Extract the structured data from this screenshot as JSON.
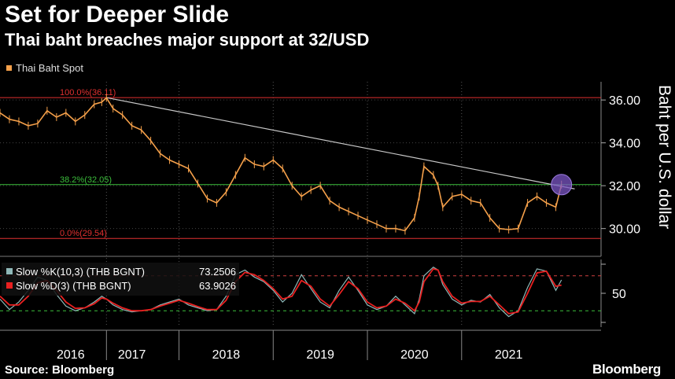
{
  "header": {
    "title": "Set for Deeper Slide",
    "subtitle": "Thai baht breaches major support at 32/USD"
  },
  "footer": {
    "source": "Source: Bloomberg",
    "brand": "Bloomberg"
  },
  "colors": {
    "spot": "#f5a04a",
    "resistance_line": "#c8c8c8",
    "fib_100": "#e03030",
    "fib_382": "#3cbf3c",
    "fib_0": "#e03030",
    "slow_k": "#8fb8b8",
    "slow_d": "#e82020",
    "highlight": "#7b55c4"
  },
  "chart_data": {
    "type": "line",
    "price_panel": {
      "legend": "Thai Baht Spot",
      "ylabel": "Baht per U.S. dollar",
      "ylim": [
        28.85,
        36.85
      ],
      "yticks": [
        "36.00",
        "34.00",
        "32.00",
        "30.00"
      ],
      "ytick_values": [
        36,
        34,
        32,
        30
      ],
      "levels": [
        {
          "label": "100.0%(36.11)",
          "value": 36.11
        },
        {
          "label": "38.2%(32.05)",
          "value": 32.05
        },
        {
          "label": "0.0%(29.54)",
          "value": 29.54
        }
      ],
      "trendline": {
        "from": {
          "x": 2016.73,
          "y": 36.11
        },
        "to": {
          "x": 2021.7,
          "y": 31.85
        }
      },
      "highlight_point": {
        "x": 2021.56,
        "y": 32.05
      },
      "x": [
        2015.6,
        2015.7,
        2015.8,
        2015.9,
        2016.0,
        2016.1,
        2016.2,
        2016.3,
        2016.4,
        2016.5,
        2016.6,
        2016.68,
        2016.73,
        2016.8,
        2016.9,
        2017.0,
        2017.1,
        2017.2,
        2017.3,
        2017.4,
        2017.5,
        2017.6,
        2017.7,
        2017.8,
        2017.9,
        2018.0,
        2018.1,
        2018.2,
        2018.3,
        2018.4,
        2018.5,
        2018.6,
        2018.7,
        2018.8,
        2018.9,
        2019.0,
        2019.1,
        2019.2,
        2019.3,
        2019.4,
        2019.5,
        2019.6,
        2019.7,
        2019.8,
        2019.9,
        2020.0,
        2020.05,
        2020.1,
        2020.2,
        2020.25,
        2020.3,
        2020.4,
        2020.5,
        2020.6,
        2020.7,
        2020.8,
        2020.9,
        2021.0,
        2021.1,
        2021.2,
        2021.3,
        2021.4,
        2021.5,
        2021.56
      ],
      "values": [
        35.4,
        35.1,
        35.0,
        34.8,
        34.9,
        35.5,
        35.2,
        35.4,
        35.0,
        35.3,
        35.8,
        35.9,
        36.1,
        35.6,
        35.3,
        34.8,
        34.6,
        34.1,
        33.5,
        33.2,
        33.0,
        32.8,
        32.1,
        31.4,
        31.2,
        31.7,
        32.5,
        33.3,
        33.0,
        32.9,
        33.2,
        32.8,
        32.0,
        31.5,
        31.8,
        32.0,
        31.3,
        31.0,
        30.8,
        30.6,
        30.4,
        30.2,
        30.0,
        30.0,
        29.9,
        30.5,
        31.5,
        32.9,
        32.5,
        32.0,
        31.0,
        31.5,
        31.6,
        31.3,
        31.2,
        30.5,
        30.0,
        29.95,
        30.0,
        31.2,
        31.5,
        31.2,
        31.0,
        32.05
      ]
    },
    "oscillator_panel": {
      "series": [
        {
          "name": "Slow %K(10,3) (THB BGNT)",
          "last": "73.2506",
          "values": [
            40,
            22,
            35,
            55,
            78,
            72,
            48,
            28,
            20,
            25,
            35,
            45,
            40,
            30,
            22,
            18,
            20,
            22,
            30,
            35,
            40,
            30,
            25,
            20,
            22,
            45,
            82,
            90,
            78,
            70,
            55,
            35,
            50,
            82,
            58,
            35,
            25,
            55,
            78,
            55,
            30,
            22,
            28,
            45,
            30,
            15,
            40,
            80,
            95,
            90,
            65,
            40,
            30,
            38,
            35,
            48,
            25,
            10,
            20,
            60,
            92,
            88,
            55,
            73
          ]
        },
        {
          "name": "Slow %D(3) (THB BGNT)",
          "last": "63.9026",
          "values": [
            45,
            30,
            30,
            45,
            68,
            72,
            55,
            35,
            24,
            25,
            32,
            42,
            40,
            33,
            25,
            20,
            20,
            22,
            28,
            33,
            38,
            33,
            27,
            22,
            22,
            38,
            70,
            86,
            82,
            72,
            58,
            40,
            45,
            72,
            62,
            40,
            28,
            48,
            70,
            58,
            35,
            25,
            28,
            40,
            33,
            20,
            35,
            70,
            92,
            90,
            70,
            45,
            33,
            36,
            36,
            45,
            30,
            15,
            18,
            50,
            85,
            88,
            62,
            64
          ]
        }
      ],
      "ytick": "50",
      "ytick_value": 50,
      "ylim": [
        0,
        100
      ],
      "bands": [
        80,
        20
      ]
    },
    "x_axis": {
      "xlim": [
        2015.6,
        2021.98
      ],
      "categories": [
        "2016",
        "2017",
        "2018",
        "2019",
        "2020",
        "2021"
      ],
      "category_centers": [
        2016.35,
        2017.0,
        2018.0,
        2019.0,
        2020.0,
        2021.0
      ],
      "boundaries": [
        2016.73,
        2017.5,
        2018.5,
        2019.5,
        2020.5
      ]
    }
  }
}
